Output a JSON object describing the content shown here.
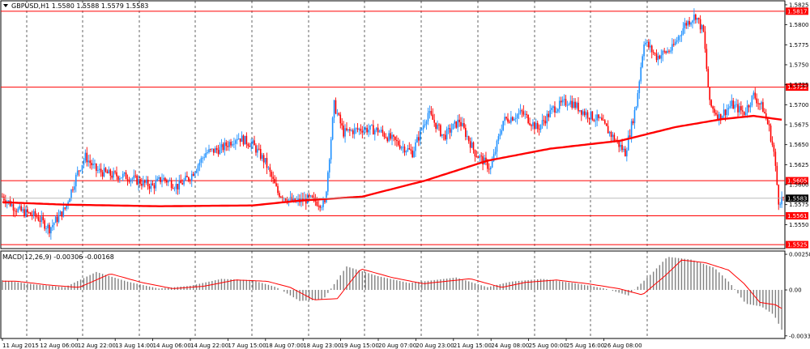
{
  "header": {
    "menu_icon": "triangle-down-icon",
    "symbol_info": "GBPUSD,H1  1.5580 1.5588 1.5579 1.5583"
  },
  "macd_panel": {
    "label": "MACD(12,26,9) -0.00306 -0.00168",
    "y_labels": [
      "0.00258",
      "0.00",
      "-0.00333"
    ]
  },
  "price_axis": {
    "ticks": [
      "1.5825",
      "1.5800",
      "1.5775",
      "1.5750",
      "1.5725",
      "1.5700",
      "1.5675",
      "1.5650",
      "1.5625",
      "1.5600",
      "1.5575",
      "1.5550"
    ]
  },
  "levels": {
    "values": [
      "1.5817",
      "1.5722",
      "1.5605",
      "1.5561",
      "1.5525"
    ],
    "line_color": "#ff0000"
  },
  "current_price": {
    "label": "1.5583",
    "color": "#000000"
  },
  "time_axis": {
    "labels": [
      "11 Aug 2015",
      "12 Aug 06:00",
      "12 Aug 22:00",
      "13 Aug 14:00",
      "14 Aug 06:00",
      "14 Aug 22:00",
      "17 Aug 15:00",
      "18 Aug 07:00",
      "18 Aug 23:00",
      "19 Aug 15:00",
      "20 Aug 07:00",
      "20 Aug 23:00",
      "21 Aug 15:00",
      "24 Aug 08:00",
      "25 Aug 00:00",
      "25 Aug 16:00",
      "26 Aug 08:00"
    ]
  },
  "colors": {
    "bull": "#1e90ff",
    "bear": "#ff0000",
    "ma": "#ff0000",
    "macd_hist": "#808080",
    "macd_signal": "#ff0000",
    "grid": "#000000"
  },
  "chart_data": {
    "type": "candlestick",
    "symbol": "GBPUSD",
    "timeframe": "H1",
    "ohlc_last": {
      "open": 1.558,
      "high": 1.5588,
      "low": 1.5579,
      "close": 1.5583
    },
    "y_range": [
      1.552,
      1.583
    ],
    "key_path": [
      [
        0,
        1.5585
      ],
      [
        10,
        1.5568
      ],
      [
        22,
        1.556
      ],
      [
        30,
        1.5545
      ],
      [
        40,
        1.557
      ],
      [
        48,
        1.5615
      ],
      [
        53,
        1.5635
      ],
      [
        60,
        1.5618
      ],
      [
        70,
        1.5612
      ],
      [
        80,
        1.561
      ],
      [
        90,
        1.5602
      ],
      [
        96,
        1.5598
      ],
      [
        102,
        1.5608
      ],
      [
        112,
        1.5598
      ],
      [
        120,
        1.561
      ],
      [
        130,
        1.564
      ],
      [
        140,
        1.5645
      ],
      [
        150,
        1.566
      ],
      [
        160,
        1.565
      ],
      [
        168,
        1.5628
      ],
      [
        176,
        1.559
      ],
      [
        186,
        1.5578
      ],
      [
        196,
        1.5582
      ],
      [
        206,
        1.5575
      ],
      [
        212,
        1.57
      ],
      [
        218,
        1.5665
      ],
      [
        230,
        1.567
      ],
      [
        240,
        1.5668
      ],
      [
        250,
        1.5655
      ],
      [
        262,
        1.564
      ],
      [
        272,
        1.569
      ],
      [
        282,
        1.566
      ],
      [
        292,
        1.568
      ],
      [
        302,
        1.564
      ],
      [
        312,
        1.562
      ],
      [
        320,
        1.568
      ],
      [
        332,
        1.569
      ],
      [
        342,
        1.567
      ],
      [
        352,
        1.5695
      ],
      [
        362,
        1.5705
      ],
      [
        372,
        1.569
      ],
      [
        382,
        1.568
      ],
      [
        390,
        1.566
      ],
      [
        398,
        1.564
      ],
      [
        405,
        1.57
      ],
      [
        410,
        1.578
      ],
      [
        418,
        1.576
      ],
      [
        428,
        1.577
      ],
      [
        436,
        1.58
      ],
      [
        443,
        1.5812
      ],
      [
        448,
        1.579
      ],
      [
        452,
        1.57
      ],
      [
        458,
        1.5685
      ],
      [
        466,
        1.57
      ],
      [
        474,
        1.569
      ],
      [
        480,
        1.5712
      ],
      [
        486,
        1.5695
      ],
      [
        490,
        1.567
      ],
      [
        493,
        1.564
      ],
      [
        496,
        1.558
      ],
      [
        499,
        1.5583
      ]
    ],
    "ma_path": [
      [
        0,
        1.5578
      ],
      [
        40,
        1.5575
      ],
      [
        100,
        1.5573
      ],
      [
        160,
        1.5574
      ],
      [
        190,
        1.558
      ],
      [
        230,
        1.5585
      ],
      [
        270,
        1.5605
      ],
      [
        310,
        1.563
      ],
      [
        350,
        1.5645
      ],
      [
        395,
        1.5655
      ],
      [
        430,
        1.5672
      ],
      [
        460,
        1.5682
      ],
      [
        480,
        1.5686
      ],
      [
        499,
        1.5681
      ]
    ],
    "macd_path": [
      [
        0,
        0.0007
      ],
      [
        20,
        0.0004
      ],
      [
        40,
        0.0002
      ],
      [
        60,
        0.0013
      ],
      [
        80,
        0.0006
      ],
      [
        100,
        0.0001
      ],
      [
        120,
        0.0003
      ],
      [
        140,
        0.0008
      ],
      [
        160,
        0.0007
      ],
      [
        175,
        0.0002
      ],
      [
        190,
        -0.0008
      ],
      [
        205,
        -0.0007
      ],
      [
        220,
        0.0017
      ],
      [
        240,
        0.001
      ],
      [
        260,
        0.0005
      ],
      [
        275,
        0.0007
      ],
      [
        290,
        0.0009
      ],
      [
        310,
        0.0002
      ],
      [
        325,
        0.0006
      ],
      [
        345,
        0.0008
      ],
      [
        365,
        0.0005
      ],
      [
        385,
        0.0001
      ],
      [
        400,
        -0.0004
      ],
      [
        415,
        0.0012
      ],
      [
        425,
        0.0024
      ],
      [
        440,
        0.0022
      ],
      [
        455,
        0.0016
      ],
      [
        465,
        0.0005
      ],
      [
        475,
        -0.001
      ],
      [
        485,
        -0.0012
      ],
      [
        493,
        -0.0018
      ],
      [
        499,
        -0.0031
      ]
    ],
    "macd_range": [
      -0.0034,
      0.0027
    ]
  }
}
